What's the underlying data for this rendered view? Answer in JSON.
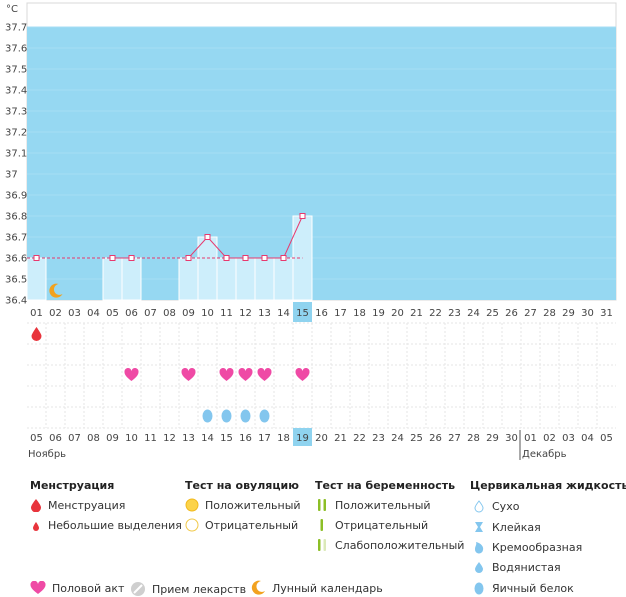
{
  "chart_data": {
    "type": "line",
    "unit_label": "°C",
    "y_ticks": [
      "37.7",
      "37.6",
      "37.5",
      "37.4",
      "37.3",
      "37.2",
      "37.1",
      "37",
      "36.9",
      "36.8",
      "36.7",
      "36.6",
      "36.5",
      "36.4"
    ],
    "ylim": [
      36.4,
      37.7
    ],
    "cycle_days": [
      "01",
      "02",
      "03",
      "04",
      "05",
      "06",
      "07",
      "08",
      "09",
      "10",
      "11",
      "12",
      "13",
      "14",
      "15",
      "16",
      "17",
      "18",
      "19",
      "20",
      "21",
      "22",
      "23",
      "24",
      "25",
      "26",
      "27",
      "28",
      "29",
      "30",
      "31"
    ],
    "highlight_day_index": 14,
    "temperature_points": [
      {
        "day": 1,
        "value": 36.6
      },
      {
        "day": 5,
        "value": 36.6
      },
      {
        "day": 6,
        "value": 36.6
      },
      {
        "day": 9,
        "value": 36.6
      },
      {
        "day": 10,
        "value": 36.7
      },
      {
        "day": 11,
        "value": 36.6
      },
      {
        "day": 12,
        "value": 36.6
      },
      {
        "day": 13,
        "value": 36.6
      },
      {
        "day": 14,
        "value": 36.6
      },
      {
        "day": 15,
        "value": 36.8
      }
    ],
    "coverline": 36.6,
    "moon_day": 2,
    "menstruation_days": [
      1
    ],
    "intercourse_days": [
      6,
      9,
      11,
      12,
      13,
      15
    ],
    "cervical_egg_white_days": [
      10,
      11,
      12,
      13
    ],
    "calendar_dates": [
      "05",
      "06",
      "07",
      "08",
      "09",
      "10",
      "11",
      "12",
      "13",
      "14",
      "15",
      "16",
      "17",
      "18",
      "19",
      "20",
      "21",
      "22",
      "23",
      "24",
      "25",
      "26",
      "27",
      "28",
      "29",
      "30",
      "01",
      "02",
      "03",
      "04",
      "05"
    ],
    "weekend_indexes": [
      4,
      5,
      11,
      12,
      18,
      19,
      25,
      26
    ],
    "month_start_left": "Ноябрь",
    "month_start_right": "Декабрь",
    "colors": {
      "sky": "#96d8f2",
      "bar": "#cdeefb",
      "line": "#e8396e",
      "highlight": "#8fd3ef",
      "grid": "#e6e6e6",
      "menstruation": "#e8343c",
      "intercourse": "#ef4aa5",
      "egg_white": "#83c6ee",
      "moon": "#f2a21f",
      "weekend": "#e8396e"
    }
  },
  "legend": {
    "menstruation": {
      "title": "Менструация",
      "items": [
        "Менструация",
        "Небольшие выделения"
      ]
    },
    "ovulation_test": {
      "title": "Тест на овуляцию",
      "items": [
        "Положительный",
        "Отрицательный"
      ]
    },
    "pregnancy_test": {
      "title": "Тест на беременность",
      "items": [
        "Положительный",
        "Отрицательный",
        "Слабоположительный"
      ]
    },
    "cervical_fluid": {
      "title": "Цервикальная жидкость",
      "items": [
        "Сухо",
        "Клейкая",
        "Кремообразная",
        "Водянистая",
        "Яичный белок"
      ]
    },
    "bottom": {
      "intercourse": "Половой акт",
      "medication": "Прием лекарств",
      "lunar": "Лунный календарь"
    },
    "icons": [
      "drop-icon",
      "small-drop-icon",
      "circle-filled-icon",
      "circle-empty-icon",
      "stripe-double-icon",
      "stripe-single-icon",
      "stripe-faint-icon",
      "dry-icon",
      "sticky-icon",
      "creamy-icon",
      "watery-icon",
      "egg-white-icon",
      "heart-icon",
      "pill-icon",
      "moon-icon"
    ]
  }
}
